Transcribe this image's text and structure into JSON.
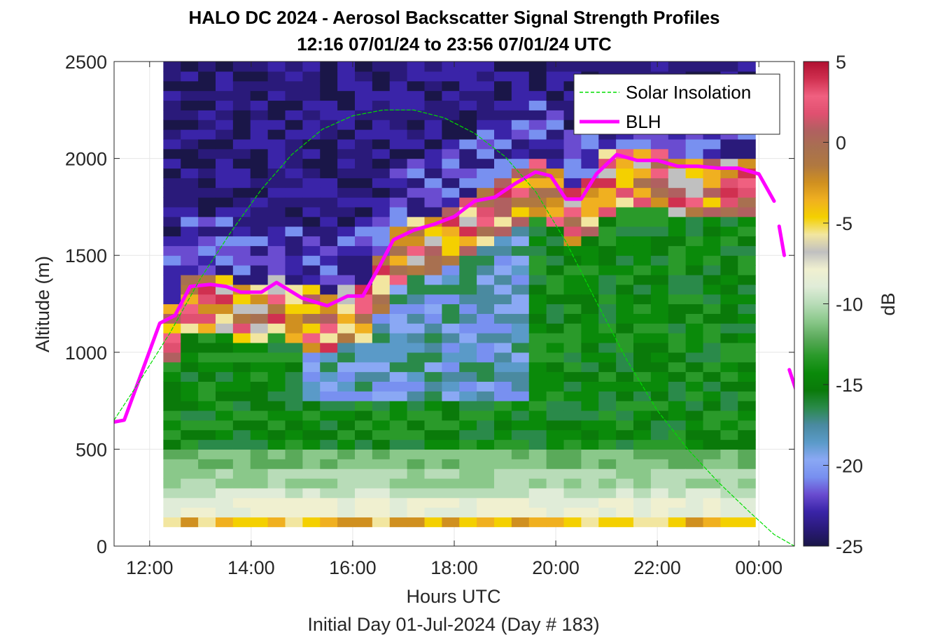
{
  "chart_data": {
    "type": "heatmap",
    "title_line1": "HALO DC 2024 - Aerosol Backscatter Signal Strength Profiles",
    "title_line2": "12:16 07/01/24 to 23:56 07/01/24  UTC",
    "xlabel": "Hours UTC",
    "xlabel2": "Initial Day 01-Jul-2024 (Day # 183)",
    "ylabel": "Altitude (m)",
    "xlim": [
      11.3,
      24.7
    ],
    "ylim": [
      0,
      2500
    ],
    "x_ticks": [
      12,
      14,
      16,
      18,
      20,
      22,
      24
    ],
    "x_tick_labels": [
      "12:00",
      "14:00",
      "16:00",
      "18:00",
      "20:00",
      "22:00",
      "00:00"
    ],
    "y_ticks": [
      0,
      500,
      1000,
      1500,
      2000,
      2500
    ],
    "y_tick_labels": [
      "0",
      "500",
      "1000",
      "1500",
      "2000",
      "2500"
    ],
    "colorbar": {
      "label": "dB",
      "range": [
        -25,
        5
      ],
      "ticks": [
        5,
        0,
        -5,
        -10,
        -15,
        -20,
        -25
      ],
      "tick_labels": [
        "5",
        "0",
        "-5",
        "-10",
        "-15",
        "-20",
        "-25"
      ]
    },
    "heatmap": {
      "x_start": 12.27,
      "x_end": 23.93,
      "y_start": 100,
      "y_end": 2500
    },
    "legend": {
      "position": "top-right",
      "entries": [
        "Solar Insolation",
        "BLH"
      ]
    },
    "series": [
      {
        "name": "BLH",
        "color": "#ff00ff",
        "x": [
          11.3,
          11.5,
          12.2,
          12.5,
          12.8,
          13.2,
          13.5,
          13.8,
          14.2,
          14.5,
          15.0,
          15.5,
          15.9,
          16.2,
          16.5,
          16.8,
          17.2,
          17.6,
          18.0,
          18.4,
          18.8,
          19.2,
          19.6,
          19.9,
          20.2,
          20.5,
          20.8,
          21.2,
          21.6,
          22.0,
          22.4,
          22.8,
          23.2,
          23.6,
          24.0,
          24.3
        ],
        "y": [
          640,
          650,
          1150,
          1190,
          1340,
          1350,
          1340,
          1310,
          1310,
          1360,
          1280,
          1240,
          1290,
          1290,
          1430,
          1580,
          1630,
          1660,
          1700,
          1780,
          1800,
          1870,
          1930,
          1910,
          1790,
          1790,
          1920,
          2020,
          1990,
          1990,
          1960,
          1960,
          1950,
          1950,
          1920,
          1780
        ]
      },
      {
        "name": "BLH",
        "color": "#ff00ff",
        "x": [
          24.4,
          24.5
        ],
        "y": [
          1650,
          1500
        ]
      },
      {
        "name": "BLH",
        "color": "#ff00ff",
        "x": [
          24.6,
          24.75
        ],
        "y": [
          910,
          790
        ]
      },
      {
        "name": "Solar Insolation",
        "color": "#00dd00",
        "x": [
          11.3,
          11.8,
          12.4,
          13.0,
          13.6,
          14.2,
          14.8,
          15.4,
          16.0,
          16.6,
          17.2,
          17.8,
          18.4,
          19.0,
          19.6,
          20.2,
          20.8,
          21.4,
          22.0,
          22.6,
          23.2,
          23.8,
          24.3,
          24.7
        ],
        "y": [
          650,
          850,
          1100,
          1380,
          1620,
          1840,
          2020,
          2150,
          2220,
          2250,
          2250,
          2210,
          2130,
          2010,
          1830,
          1570,
          1260,
          960,
          700,
          500,
          330,
          180,
          60,
          0
        ]
      }
    ],
    "colormap": [
      "#1a1648",
      "#2a1a7a",
      "#3a24a8",
      "#6a4cd0",
      "#7890f0",
      "#8aa8f4",
      "#5a9ac8",
      "#4a8aa0",
      "#2a8a4a",
      "#0a7a0a",
      "#0a8a0a",
      "#2a9a2a",
      "#5aaa5a",
      "#8ac88a",
      "#b8dcb8",
      "#e0ecd8",
      "#f0f0d0",
      "#c0c0c0",
      "#f2e6a0",
      "#f4d000",
      "#f0b020",
      "#d09020",
      "#b07840",
      "#a87050",
      "#b06060",
      "#e05070",
      "#f06080",
      "#d03050",
      "#b01030"
    ]
  }
}
